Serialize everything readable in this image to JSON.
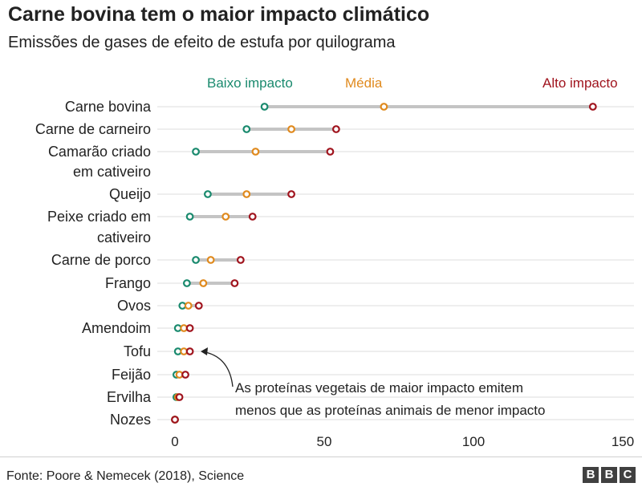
{
  "header": {
    "title": "Carne bovina tem o maior impacto climático",
    "subtitle": "Emissões de gases de efeito de estufa por quilograma"
  },
  "legend": [
    {
      "label": "Baixo impacto",
      "color": "#1a8a6e"
    },
    {
      "label": "Média",
      "color": "#e08a1e"
    },
    {
      "label": "Alto impacto",
      "color": "#a0141e"
    }
  ],
  "annotation": {
    "line1": "As proteínas vegetais de maior impacto emitem",
    "line2": "menos que as proteínas animais de menor impacto"
  },
  "footer": {
    "source": "Fonte: Poore & Nemecek (2018), Science",
    "logo": [
      "B",
      "B",
      "C"
    ]
  },
  "chart_data": {
    "type": "dot-range",
    "categories": [
      [
        "Carne bovina"
      ],
      [
        "Carne de carneiro"
      ],
      [
        "Camarão criado",
        "em cativeiro"
      ],
      [
        "Queijo"
      ],
      [
        "Peixe criado em",
        "cativeiro"
      ],
      [
        "Carne de porco"
      ],
      [
        "Frango"
      ],
      [
        "Ovos"
      ],
      [
        "Amendoim"
      ],
      [
        "Tofu"
      ],
      [
        "Feijão"
      ],
      [
        "Ervilha"
      ],
      [
        "Nozes"
      ]
    ],
    "series": [
      {
        "name": "Baixo impacto",
        "color": "#1a8a6e",
        "values": [
          30,
          24,
          7,
          11,
          5,
          7,
          4,
          2.5,
          1,
          1,
          0.5,
          0.5,
          0
        ]
      },
      {
        "name": "Média",
        "color": "#e08a1e",
        "values": [
          70,
          39,
          27,
          24,
          17,
          12,
          9.5,
          4.5,
          3,
          3,
          1.5,
          1,
          0
        ]
      },
      {
        "name": "Alto impacto",
        "color": "#a0141e",
        "values": [
          140,
          54,
          52,
          39,
          26,
          22,
          20,
          8,
          5,
          5,
          3.5,
          1.5,
          0
        ]
      }
    ],
    "x_ticks": [
      0,
      50,
      100,
      150
    ],
    "xlim": [
      0,
      150
    ],
    "grid": true
  }
}
